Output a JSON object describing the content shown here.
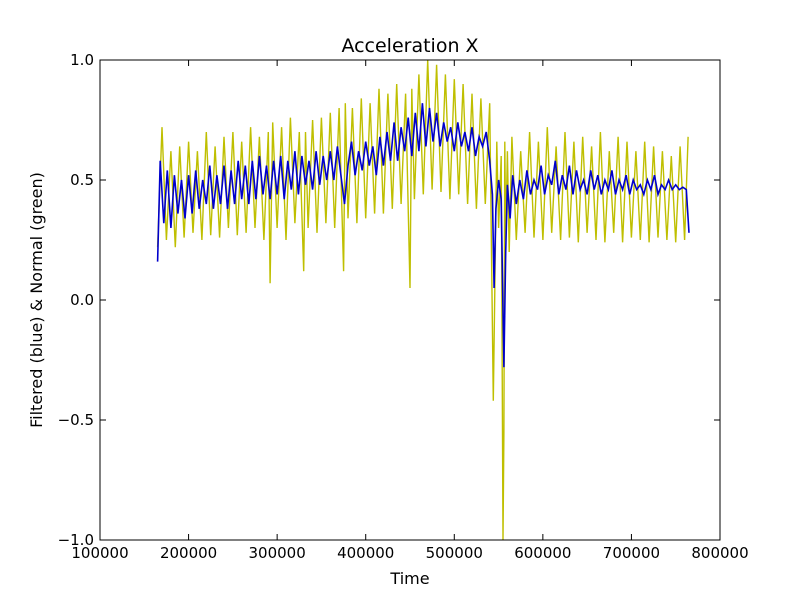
{
  "chart_data": {
    "type": "line",
    "title": "Acceleration X",
    "xlabel": "Time",
    "ylabel": "Filtered (blue) & Normal (green)",
    "xlim": [
      100000,
      800000
    ],
    "ylim": [
      -1.0,
      1.0
    ],
    "xticks": [
      "100000",
      "200000",
      "300000",
      "400000",
      "500000",
      "600000",
      "700000",
      "800000"
    ],
    "yticks": [
      "−1.0",
      "−0.5",
      "0.0",
      "0.5",
      "1.0"
    ],
    "grid": false,
    "colors": {
      "normal": "#bfbf00",
      "filtered": "#0000cc"
    },
    "series": [
      {
        "key": "normal",
        "x": [
          165000,
          170000,
          175000,
          180000,
          185000,
          190000,
          195000,
          200000,
          205000,
          210000,
          215000,
          220000,
          225000,
          230000,
          235000,
          240000,
          245000,
          250000,
          255000,
          260000,
          265000,
          270000,
          275000,
          280000,
          285000,
          290000,
          292000,
          295000,
          300000,
          305000,
          310000,
          315000,
          320000,
          325000,
          330000,
          332000,
          335000,
          340000,
          345000,
          350000,
          355000,
          360000,
          365000,
          370000,
          375000,
          377000,
          380000,
          385000,
          390000,
          395000,
          400000,
          405000,
          410000,
          415000,
          420000,
          425000,
          430000,
          435000,
          440000,
          445000,
          450000,
          452000,
          455000,
          460000,
          465000,
          470000,
          475000,
          480000,
          485000,
          490000,
          495000,
          500000,
          505000,
          510000,
          515000,
          520000,
          525000,
          530000,
          535000,
          540000,
          544000,
          546000,
          548000,
          550000,
          553000,
          555000,
          556000,
          557000,
          558000,
          560000,
          562000,
          565000,
          570000,
          575000,
          580000,
          585000,
          590000,
          595000,
          600000,
          605000,
          610000,
          615000,
          620000,
          625000,
          630000,
          635000,
          640000,
          645000,
          650000,
          655000,
          660000,
          665000,
          670000,
          675000,
          680000,
          685000,
          690000,
          695000,
          700000,
          705000,
          710000,
          715000,
          720000,
          725000,
          730000,
          735000,
          740000,
          745000,
          750000,
          755000,
          760000,
          764000
        ],
        "y": [
          0.22,
          0.72,
          0.25,
          0.62,
          0.22,
          0.64,
          0.26,
          0.66,
          0.28,
          0.62,
          0.25,
          0.7,
          0.27,
          0.64,
          0.26,
          0.68,
          0.3,
          0.7,
          0.27,
          0.66,
          0.28,
          0.72,
          0.3,
          0.68,
          0.25,
          0.7,
          0.07,
          0.74,
          0.3,
          0.72,
          0.25,
          0.76,
          0.32,
          0.7,
          0.12,
          0.7,
          0.3,
          0.75,
          0.28,
          0.76,
          0.32,
          0.78,
          0.3,
          0.8,
          0.12,
          0.82,
          0.34,
          0.8,
          0.32,
          0.84,
          0.34,
          0.82,
          0.36,
          0.88,
          0.36,
          0.86,
          0.38,
          0.9,
          0.4,
          0.86,
          0.05,
          0.88,
          0.42,
          0.94,
          0.44,
          1.0,
          0.46,
          0.98,
          0.45,
          0.94,
          0.42,
          0.92,
          0.44,
          0.9,
          0.4,
          0.86,
          0.38,
          0.84,
          0.4,
          0.82,
          -0.42,
          0.1,
          0.66,
          0.3,
          0.6,
          -1.0,
          -0.55,
          0.66,
          0.25,
          0.62,
          0.2,
          0.68,
          0.25,
          0.62,
          0.28,
          0.7,
          0.26,
          0.66,
          0.25,
          0.72,
          0.28,
          0.64,
          0.25,
          0.7,
          0.26,
          0.66,
          0.24,
          0.68,
          0.28,
          0.64,
          0.25,
          0.7,
          0.24,
          0.62,
          0.28,
          0.68,
          0.24,
          0.66,
          0.26,
          0.62,
          0.25,
          0.66,
          0.24,
          0.64,
          0.26,
          0.62,
          0.25,
          0.6,
          0.24,
          0.64,
          0.25,
          0.68
        ]
      },
      {
        "key": "filtered",
        "x": [
          165000,
          168000,
          172000,
          176000,
          180000,
          184000,
          188000,
          192000,
          196000,
          200000,
          204000,
          208000,
          212000,
          216000,
          220000,
          224000,
          228000,
          232000,
          236000,
          240000,
          244000,
          248000,
          252000,
          256000,
          260000,
          264000,
          268000,
          272000,
          276000,
          280000,
          284000,
          288000,
          292000,
          296000,
          300000,
          304000,
          308000,
          312000,
          316000,
          320000,
          324000,
          328000,
          332000,
          336000,
          340000,
          344000,
          348000,
          352000,
          356000,
          360000,
          364000,
          368000,
          372000,
          376000,
          380000,
          384000,
          388000,
          392000,
          396000,
          400000,
          404000,
          408000,
          412000,
          416000,
          420000,
          424000,
          428000,
          432000,
          436000,
          440000,
          444000,
          448000,
          452000,
          456000,
          460000,
          464000,
          468000,
          472000,
          476000,
          480000,
          484000,
          488000,
          492000,
          496000,
          500000,
          504000,
          508000,
          512000,
          516000,
          520000,
          524000,
          528000,
          532000,
          536000,
          540000,
          543000,
          545000,
          547000,
          550000,
          553000,
          556000,
          558000,
          560000,
          563000,
          566000,
          570000,
          574000,
          578000,
          582000,
          586000,
          590000,
          594000,
          598000,
          602000,
          606000,
          610000,
          614000,
          618000,
          622000,
          626000,
          630000,
          634000,
          638000,
          642000,
          646000,
          650000,
          654000,
          658000,
          662000,
          666000,
          670000,
          674000,
          678000,
          682000,
          686000,
          690000,
          694000,
          698000,
          702000,
          706000,
          710000,
          714000,
          718000,
          722000,
          726000,
          730000,
          734000,
          738000,
          742000,
          746000,
          750000,
          754000,
          758000,
          762000,
          765000
        ],
        "y": [
          0.16,
          0.58,
          0.32,
          0.54,
          0.3,
          0.52,
          0.36,
          0.5,
          0.34,
          0.52,
          0.36,
          0.54,
          0.38,
          0.5,
          0.4,
          0.56,
          0.38,
          0.52,
          0.4,
          0.56,
          0.38,
          0.54,
          0.4,
          0.58,
          0.42,
          0.56,
          0.4,
          0.58,
          0.42,
          0.6,
          0.44,
          0.56,
          0.42,
          0.58,
          0.44,
          0.6,
          0.42,
          0.58,
          0.46,
          0.62,
          0.44,
          0.6,
          0.48,
          0.58,
          0.46,
          0.62,
          0.48,
          0.6,
          0.5,
          0.62,
          0.5,
          0.64,
          0.52,
          0.4,
          0.56,
          0.66,
          0.52,
          0.62,
          0.54,
          0.66,
          0.56,
          0.64,
          0.52,
          0.68,
          0.56,
          0.7,
          0.58,
          0.74,
          0.58,
          0.72,
          0.62,
          0.76,
          0.6,
          0.78,
          0.62,
          0.82,
          0.64,
          0.8,
          0.66,
          0.78,
          0.64,
          0.74,
          0.66,
          0.72,
          0.62,
          0.74,
          0.64,
          0.7,
          0.62,
          0.72,
          0.6,
          0.68,
          0.64,
          0.7,
          0.58,
          0.44,
          0.05,
          0.38,
          0.5,
          0.42,
          -0.28,
          0.2,
          0.48,
          0.34,
          0.52,
          0.4,
          0.5,
          0.42,
          0.54,
          0.44,
          0.5,
          0.46,
          0.56,
          0.44,
          0.52,
          0.48,
          0.58,
          0.44,
          0.52,
          0.46,
          0.56,
          0.44,
          0.54,
          0.46,
          0.5,
          0.44,
          0.54,
          0.46,
          0.52,
          0.44,
          0.5,
          0.46,
          0.54,
          0.44,
          0.5,
          0.46,
          0.52,
          0.44,
          0.5,
          0.46,
          0.48,
          0.44,
          0.5,
          0.46,
          0.52,
          0.44,
          0.48,
          0.46,
          0.5,
          0.46,
          0.48,
          0.46,
          0.47,
          0.46,
          0.28
        ]
      }
    ]
  }
}
